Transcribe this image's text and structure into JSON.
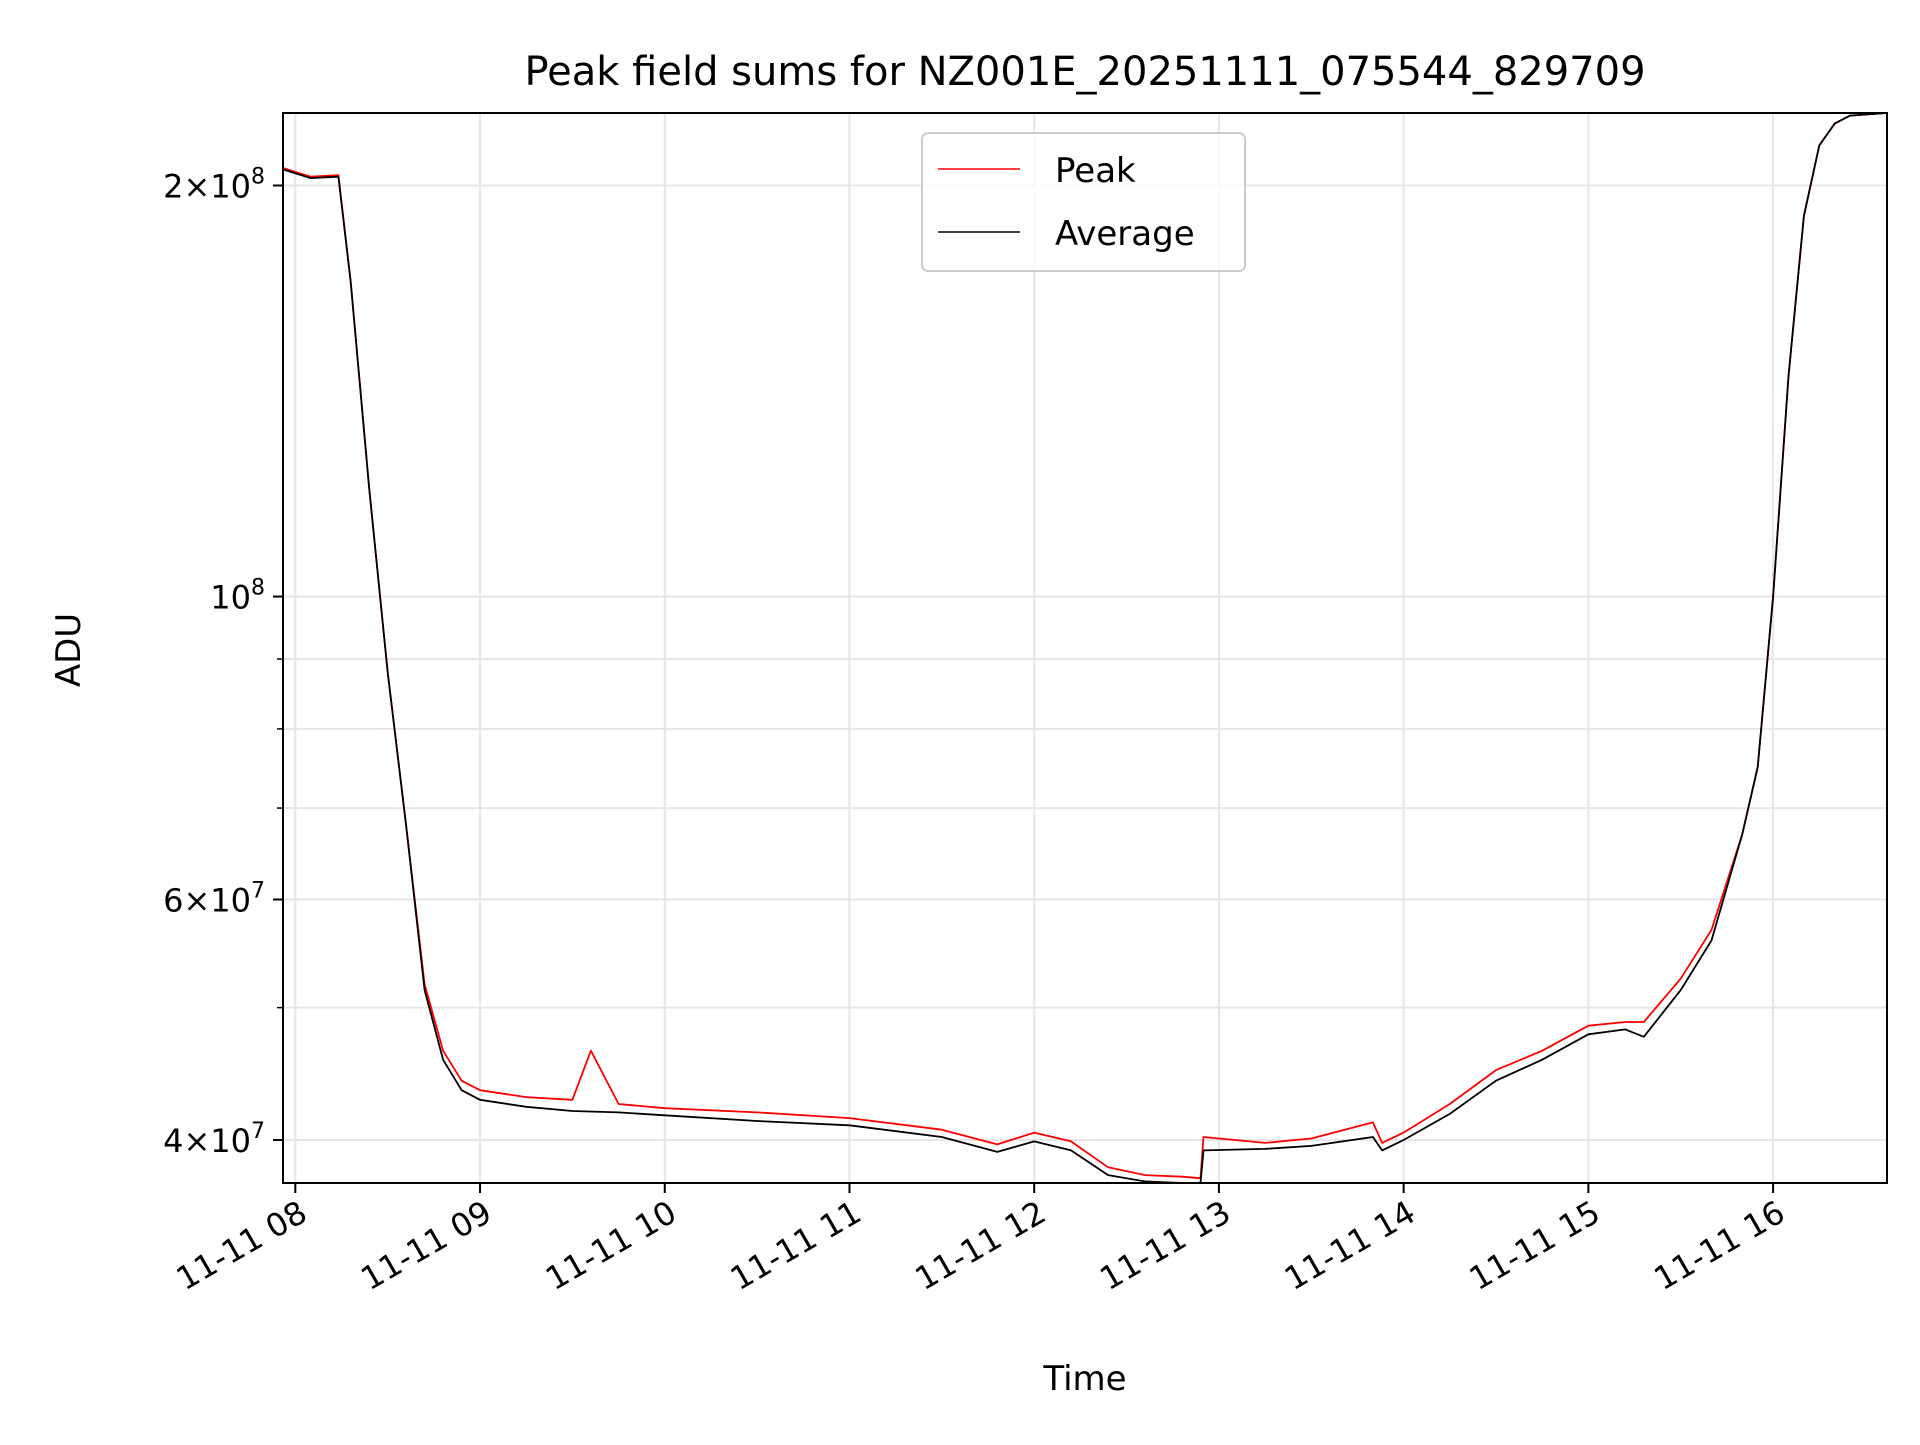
{
  "chart_data": {
    "type": "line",
    "title": "Peak field sums for NZ001E_20251111_075544_829709",
    "xlabel": "Time",
    "ylabel": "ADU",
    "yscale": "log",
    "grid": true,
    "legend_position": "top-center",
    "xlim": [
      "2025-11-11 07:56",
      "2025-11-11 16:37"
    ],
    "ylim": [
      37200000,
      226000000
    ],
    "x_ticks": [
      {
        "value": "2025-11-11 08:00",
        "label": "11-11 08"
      },
      {
        "value": "2025-11-11 09:00",
        "label": "11-11 09"
      },
      {
        "value": "2025-11-11 10:00",
        "label": "11-11 10"
      },
      {
        "value": "2025-11-11 11:00",
        "label": "11-11 11"
      },
      {
        "value": "2025-11-11 12:00",
        "label": "11-11 12"
      },
      {
        "value": "2025-11-11 13:00",
        "label": "11-11 13"
      },
      {
        "value": "2025-11-11 14:00",
        "label": "11-11 14"
      },
      {
        "value": "2025-11-11 15:00",
        "label": "11-11 15"
      },
      {
        "value": "2025-11-11 16:00",
        "label": "11-11 16"
      }
    ],
    "y_major_ticks": [
      {
        "value": 40000000,
        "base": "4",
        "sup": "7"
      },
      {
        "value": 60000000,
        "base": "6",
        "sup": "7"
      },
      {
        "value": 100000000,
        "base": "",
        "sup": "8"
      },
      {
        "value": 200000000,
        "base": "2",
        "sup": "8"
      }
    ],
    "y_minor_ticks": [
      50000000,
      70000000,
      80000000,
      90000000
    ],
    "series": [
      {
        "name": "Peak",
        "color": "#ff0000",
        "x": [
          "2025-11-11 07:56",
          "2025-11-11 08:05",
          "2025-11-11 08:14",
          "2025-11-11 08:18",
          "2025-11-11 08:24",
          "2025-11-11 08:30",
          "2025-11-11 08:36",
          "2025-11-11 08:42",
          "2025-11-11 08:48",
          "2025-11-11 08:54",
          "2025-11-11 09:00",
          "2025-11-11 09:15",
          "2025-11-11 09:30",
          "2025-11-11 09:36",
          "2025-11-11 09:45",
          "2025-11-11 10:00",
          "2025-11-11 10:30",
          "2025-11-11 11:00",
          "2025-11-11 11:30",
          "2025-11-11 11:48",
          "2025-11-11 12:00",
          "2025-11-11 12:12",
          "2025-11-11 12:24",
          "2025-11-11 12:36",
          "2025-11-11 12:48",
          "2025-11-11 12:54",
          "2025-11-11 12:55",
          "2025-11-11 13:15",
          "2025-11-11 13:30",
          "2025-11-11 13:50",
          "2025-11-11 13:53",
          "2025-11-11 14:00",
          "2025-11-11 14:15",
          "2025-11-11 14:30",
          "2025-11-11 14:45",
          "2025-11-11 15:00",
          "2025-11-11 15:12",
          "2025-11-11 15:18",
          "2025-11-11 15:30",
          "2025-11-11 15:40",
          "2025-11-11 15:50",
          "2025-11-11 15:55",
          "2025-11-11 16:00",
          "2025-11-11 16:05",
          "2025-11-11 16:10",
          "2025-11-11 16:15",
          "2025-11-11 16:20",
          "2025-11-11 16:25",
          "2025-11-11 16:37"
        ],
        "y": [
          206000000,
          203000000,
          203500000,
          170000000,
          120000000,
          88000000,
          68000000,
          52000000,
          46500000,
          44200000,
          43500000,
          43000000,
          42800000,
          46500000,
          42500000,
          42200000,
          41900000,
          41500000,
          40700000,
          39700000,
          40500000,
          39900000,
          38200000,
          37700000,
          37600000,
          37500000,
          40200000,
          39800000,
          40100000,
          41200000,
          39800000,
          40500000,
          42500000,
          45000000,
          46500000,
          48500000,
          48800000,
          48800000,
          52500000,
          57000000,
          67000000,
          75000000,
          100000000,
          145000000,
          190000000,
          214000000,
          222000000,
          225000000,
          226000000
        ]
      },
      {
        "name": "Average",
        "color": "#000000",
        "x": [
          "2025-11-11 07:56",
          "2025-11-11 08:05",
          "2025-11-11 08:14",
          "2025-11-11 08:18",
          "2025-11-11 08:24",
          "2025-11-11 08:30",
          "2025-11-11 08:36",
          "2025-11-11 08:42",
          "2025-11-11 08:48",
          "2025-11-11 08:54",
          "2025-11-11 09:00",
          "2025-11-11 09:15",
          "2025-11-11 09:30",
          "2025-11-11 09:45",
          "2025-11-11 10:00",
          "2025-11-11 10:30",
          "2025-11-11 11:00",
          "2025-11-11 11:30",
          "2025-11-11 11:48",
          "2025-11-11 12:00",
          "2025-11-11 12:12",
          "2025-11-11 12:24",
          "2025-11-11 12:36",
          "2025-11-11 12:48",
          "2025-11-11 12:54",
          "2025-11-11 12:55",
          "2025-11-11 13:15",
          "2025-11-11 13:30",
          "2025-11-11 13:50",
          "2025-11-11 13:53",
          "2025-11-11 14:00",
          "2025-11-11 14:15",
          "2025-11-11 14:30",
          "2025-11-11 14:45",
          "2025-11-11 15:00",
          "2025-11-11 15:12",
          "2025-11-11 15:18",
          "2025-11-11 15:30",
          "2025-11-11 15:40",
          "2025-11-11 15:50",
          "2025-11-11 15:55",
          "2025-11-11 16:00",
          "2025-11-11 16:05",
          "2025-11-11 16:10",
          "2025-11-11 16:15",
          "2025-11-11 16:20",
          "2025-11-11 16:25",
          "2025-11-11 16:37"
        ],
        "y": [
          205500000,
          202500000,
          203000000,
          170000000,
          120000000,
          88000000,
          68000000,
          51500000,
          45800000,
          43500000,
          42800000,
          42300000,
          42000000,
          41900000,
          41700000,
          41300000,
          41000000,
          40200000,
          39200000,
          39900000,
          39300000,
          37700000,
          37300000,
          37200000,
          37200000,
          39300000,
          39400000,
          39600000,
          40200000,
          39300000,
          40000000,
          41800000,
          44200000,
          45800000,
          47800000,
          48200000,
          47600000,
          51500000,
          56000000,
          67000000,
          75000000,
          100000000,
          145000000,
          190000000,
          214000000,
          222000000,
          225000000,
          226000000
        ]
      }
    ]
  }
}
